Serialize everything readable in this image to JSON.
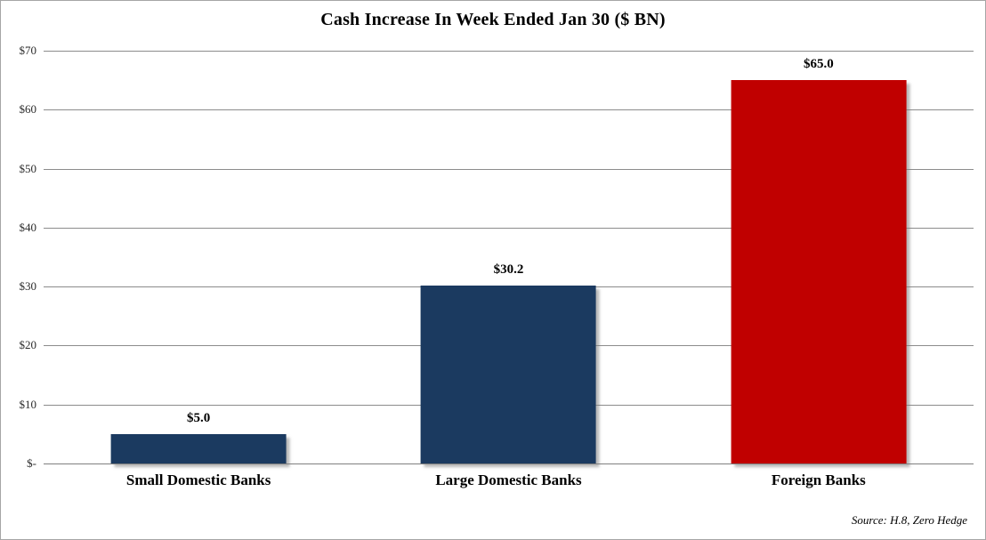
{
  "chart_data": {
    "type": "bar",
    "title": "Cash Increase In Week Ended Jan 30 ($ BN)",
    "categories": [
      "Small Domestic Banks",
      "Large Domestic Banks",
      "Foreign Banks"
    ],
    "values": [
      5.0,
      30.2,
      65.0
    ],
    "data_labels": [
      "$5.0",
      "$30.2",
      "$65.0"
    ],
    "bar_colors": [
      "#1b3a60",
      "#1b3a60",
      "#c00000"
    ],
    "ylim": [
      0,
      70
    ],
    "ytick_values": [
      0,
      10,
      20,
      30,
      40,
      50,
      60,
      70
    ],
    "ytick_labels": [
      "$-",
      "$10",
      "$20",
      "$30",
      "$40",
      "$50",
      "$60",
      "$70"
    ],
    "grid": "horizontal",
    "gridline_color": "#8c8c8c",
    "legend": "none",
    "xlabel": "",
    "ylabel": "",
    "source_note": "Source: H.8, Zero Hedge"
  }
}
